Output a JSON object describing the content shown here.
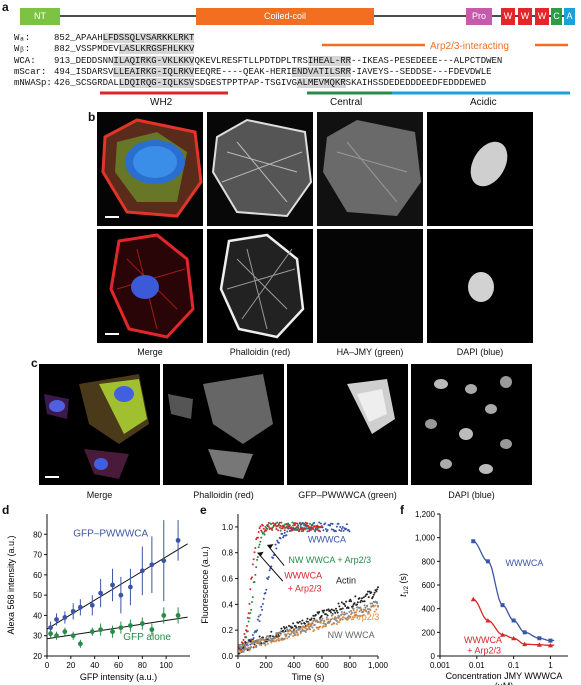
{
  "panels": {
    "a": "a",
    "b": "b",
    "c": "c",
    "d": "d",
    "e": "e",
    "f": "f"
  },
  "domains": {
    "nt": "NT",
    "coiled": "Coiled-coil",
    "pro": "Pro",
    "w1": "W",
    "w2": "W",
    "w3": "W",
    "c": "C",
    "a": "A",
    "colors": {
      "nt": "#7dc242",
      "coiled": "#f26f21",
      "pro": "#c45bab",
      "w": "#e2262a",
      "c": "#2e9b48",
      "a": "#1ba0d8"
    }
  },
  "arp_label": "Arp2/3-interacting",
  "sequences": [
    {
      "name": "Wₐ:",
      "pos": "852",
      "pre": "_APAAH",
      "hl1": "LFDSSQLVSARKKLRKT",
      "post": "",
      "hl2": "",
      "post2": ""
    },
    {
      "name": "Wᵦ:",
      "pos": "882",
      "pre": "_VSSPMDEV",
      "hl1": "LASLKRGSFHLKKV",
      "post": "",
      "hl2": "",
      "post2": ""
    },
    {
      "name": "WCA:",
      "pos": "913",
      "pre": "_DEDDSNN",
      "hl1": "ILAQIRKG-VKLKKV",
      "post": "QKEVLRESFTLLPDTDPLTRS",
      "hl2": "IHEAL-RR",
      "post2": "--IKEAS-PESEDEEE---ALPCTDWEN"
    },
    {
      "name": "mScar:",
      "pos": "494",
      "pre": "_ISDARSV",
      "hl1": "LLEAIRKG-IQLRKV",
      "post": "EEQRE----QEAK-HERI",
      "hl2": "ENDVATILSRR",
      "post2": "-IAVEYS--SEDDSE---FDEVDWLE"
    },
    {
      "name": "mNWASp:",
      "pos": "426",
      "pre": "_SCSGRDAL",
      "hl1": "LDQIRQG-IQLKSV",
      "post": "SDGESTPPTPAP-TSGIVG",
      "hl2": "ALMEVMQKR",
      "post2": "SKAIHSSDEDEDDDEEDFEDDDEWED"
    }
  ],
  "seq_labels": {
    "wh2": "WH2",
    "central": "Central",
    "acidic": "Acidic"
  },
  "b_captions": [
    "Merge",
    "Phalloidin (red)",
    "HA–JMY (green)",
    "DAPI (blue)"
  ],
  "c_captions": [
    "Merge",
    "Phalloidin (red)",
    "GFP–PWWWCA (green)",
    "DAPI (blue)"
  ],
  "chart_d": {
    "type": "scatter",
    "xlabel": "GFP intensity (a.u.)",
    "ylabel": "Alexa 568 intensity (a.u.)",
    "xlim": [
      0,
      120
    ],
    "ylim": [
      20,
      90
    ],
    "xticks": [
      0,
      20,
      40,
      60,
      80,
      100
    ],
    "yticks": [
      20,
      30,
      40,
      50,
      60,
      70,
      80
    ],
    "series": [
      {
        "name": "GFP–PWWWCA",
        "color": "#3b55a6",
        "x": [
          3,
          8,
          15,
          22,
          28,
          38,
          45,
          55,
          62,
          70,
          80,
          88,
          98,
          110
        ],
        "y": [
          34,
          38,
          39,
          42,
          44,
          45,
          51,
          55,
          50,
          54,
          62,
          65,
          67,
          77
        ],
        "err": [
          3,
          3,
          3,
          4,
          4,
          5,
          7,
          8,
          9,
          9,
          12,
          14,
          20,
          10
        ]
      },
      {
        "name": "GFP alone",
        "color": "#2a8a4a",
        "x": [
          3,
          8,
          15,
          22,
          28,
          38,
          45,
          55,
          62,
          70,
          80,
          88,
          98,
          110
        ],
        "y": [
          31,
          30,
          32,
          30,
          26,
          32,
          33,
          32,
          34,
          35,
          36,
          33,
          40,
          40
        ],
        "err": [
          2,
          2,
          2,
          2,
          2,
          2,
          3,
          3,
          3,
          3,
          3,
          3,
          4,
          4
        ]
      }
    ]
  },
  "chart_e": {
    "type": "line",
    "xlabel": "Time (s)",
    "ylabel": "Fluorescence (a.u.)",
    "xlim": [
      0,
      1000
    ],
    "ylim": [
      0,
      1.1
    ],
    "xticks": [
      0,
      200,
      400,
      600,
      800,
      "1,000"
    ],
    "yticks": [
      0,
      0.2,
      0.4,
      0.6,
      0.8,
      1.0
    ],
    "series": [
      {
        "name": "WWWCA",
        "color": "#3b55a6",
        "t_half": 200,
        "end": 800
      },
      {
        "name": "NW WWCA + Arp2/3",
        "color": "#2a8a4a",
        "t_half": 110,
        "end": 580
      },
      {
        "name": "WWWCA\n+ Arp2/3",
        "color": "#d8262a",
        "t_half": 90,
        "end": 600
      },
      {
        "name": "Actin",
        "color": "#222222",
        "slope": 0.00045,
        "end": 1000
      },
      {
        "name": "Arp2/3",
        "color": "#e58a3a",
        "slope": 0.00033,
        "end": 1000
      },
      {
        "name": "NW WWCA",
        "color": "#888888",
        "slope": 0.00035,
        "end": 1000
      }
    ],
    "labels": {
      "wwwca": "WWWCA",
      "nw_arp": "NW WWCA + Arp2/3",
      "wwwca_arp": "WWWCA",
      "wwwca_arp2": "+ Arp2/3",
      "actin": "Actin",
      "arp": "Arp2/3",
      "nw": "NW WWCA"
    }
  },
  "chart_f": {
    "type": "scatter",
    "xlabel": "Concentration JMY WWWCA",
    "xlabel2": "(μM)",
    "ylabel": "t",
    "ylabel_sub": "1/2",
    "ylabel_unit": " (s)",
    "xlim_log": [
      0.001,
      3
    ],
    "ylim": [
      0,
      1200
    ],
    "xticks": [
      "0.001",
      "0.01",
      "0.1",
      "1"
    ],
    "yticks": [
      "0",
      "200",
      "400",
      "600",
      "800",
      "1,000",
      "1,200"
    ],
    "series": [
      {
        "name": "WWWCA",
        "color": "#3b55a6",
        "x": [
          0.008,
          0.02,
          0.05,
          0.1,
          0.2,
          0.5,
          1.0
        ],
        "y": [
          970,
          800,
          430,
          300,
          200,
          150,
          130
        ]
      },
      {
        "name": "WWWCA\n+ Arp2/3",
        "color": "#d8262a",
        "x": [
          0.008,
          0.02,
          0.05,
          0.1,
          0.2,
          0.5,
          1.0
        ],
        "y": [
          480,
          300,
          180,
          150,
          100,
          95,
          90
        ]
      }
    ],
    "labels": {
      "wwwca": "WWWCA",
      "wwwca_arp": "WWWCA",
      "wwwca_arp2": "+ Arp2/3"
    }
  }
}
